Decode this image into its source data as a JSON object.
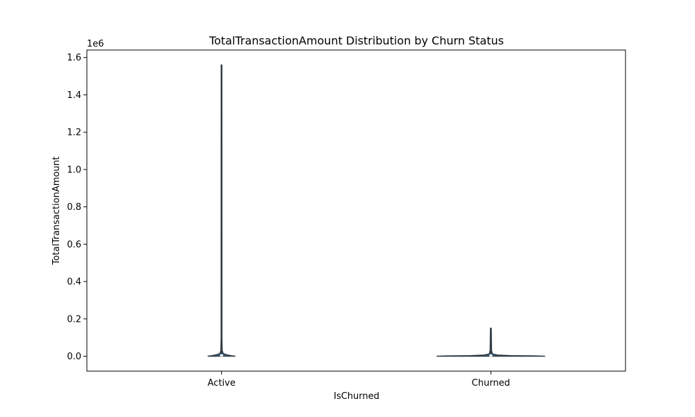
{
  "chart_data": {
    "type": "violin",
    "title": "TotalTransactionAmount Distribution by Churn Status",
    "xlabel": "IsChurned",
    "ylabel": "TotalTransactionAmount",
    "y_offset_label": "1e6",
    "categories": [
      "Active",
      "Churned"
    ],
    "ylim": [
      -80000,
      1640000
    ],
    "yticks": [
      0.0,
      0.2,
      0.4,
      0.6,
      0.8,
      1.0,
      1.2,
      1.4,
      1.6
    ],
    "ytick_labels": [
      "0.0",
      "0.2",
      "0.4",
      "0.6",
      "0.8",
      "1.0",
      "1.2",
      "1.4",
      "1.6"
    ],
    "y_tick_multiplier": 1000000,
    "grid": false,
    "violin_color": "#3b6a8f",
    "outline_color": "#2f3a44",
    "violins": [
      {
        "category": "Active",
        "max": 1560000,
        "min": 0,
        "median": 2500,
        "profile": [
          {
            "y": 0,
            "w": 0.1
          },
          {
            "y": 3000,
            "w": 0.07
          },
          {
            "y": 8000,
            "w": 0.035
          },
          {
            "y": 15000,
            "w": 0.012
          },
          {
            "y": 30000,
            "w": 0.005
          },
          {
            "y": 100000,
            "w": 0.003
          },
          {
            "y": 1560000,
            "w": 0.0025
          }
        ]
      },
      {
        "category": "Churned",
        "max": 150000,
        "min": 0,
        "median": 2000,
        "profile": [
          {
            "y": 0,
            "w": 0.4
          },
          {
            "y": 1500,
            "w": 0.33
          },
          {
            "y": 3000,
            "w": 0.15
          },
          {
            "y": 6000,
            "w": 0.05
          },
          {
            "y": 12000,
            "w": 0.012
          },
          {
            "y": 30000,
            "w": 0.005
          },
          {
            "y": 150000,
            "w": 0.003
          }
        ]
      }
    ]
  }
}
